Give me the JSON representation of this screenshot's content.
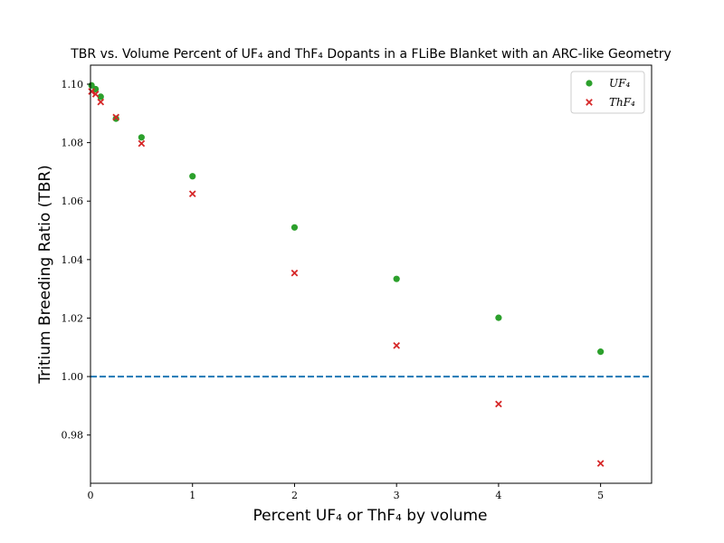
{
  "chart_data": {
    "type": "scatter",
    "title": "TBR vs. Volume Percent of UF₄ and ThF₄ Dopants in a FLiBe Blanket with an ARC-like Geometry",
    "xlabel": "Percent UF₄ or ThF₄ by volume",
    "ylabel": "Tritium Breeding Ratio (TBR)",
    "xlim": [
      0,
      5.5
    ],
    "ylim": [
      0.9635,
      1.1065
    ],
    "xticks": [
      "0",
      "1",
      "2",
      "3",
      "4",
      "5"
    ],
    "yticks": [
      "0.98",
      "1.00",
      "1.02",
      "1.04",
      "1.06",
      "1.08",
      "1.10"
    ],
    "grid": false,
    "legend_position": "top-right",
    "reference_line": {
      "y": 1.0,
      "style": "dashed",
      "color": "#1f77b4"
    },
    "series": [
      {
        "name": "UF₄",
        "marker": "circle",
        "color": "#2ca02c",
        "x": [
          0.01,
          0.05,
          0.1,
          0.25,
          0.5,
          1,
          2,
          3,
          4,
          5
        ],
        "y": [
          1.0996,
          1.0983,
          1.0957,
          1.0882,
          1.0818,
          1.0685,
          1.051,
          1.0334,
          1.0201,
          1.0085
        ]
      },
      {
        "name": "ThF₄",
        "marker": "x",
        "color": "#d62728",
        "x": [
          0.01,
          0.05,
          0.1,
          0.25,
          0.5,
          1,
          2,
          3,
          4,
          5
        ],
        "y": [
          1.0975,
          1.0966,
          1.0939,
          1.0887,
          1.0797,
          1.0625,
          1.0354,
          1.0106,
          0.9906,
          0.9703
        ]
      }
    ]
  }
}
